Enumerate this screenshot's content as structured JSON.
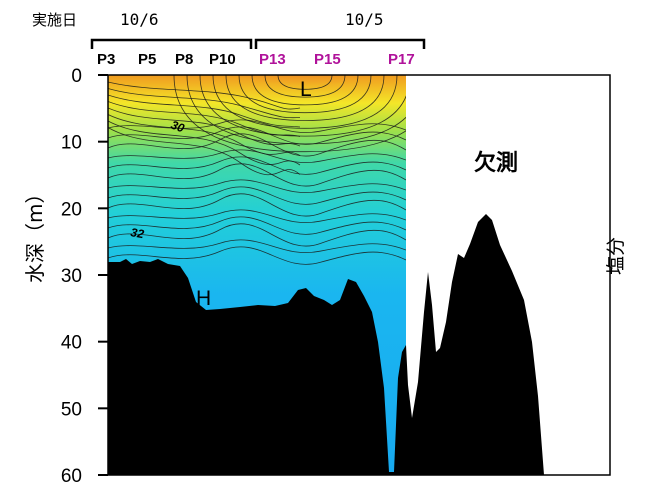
{
  "chart_data": {
    "type": "contour",
    "header_label": "実施日",
    "dates": [
      {
        "label": "10/6",
        "stations": [
          "P3",
          "P5",
          "P8",
          "P10"
        ]
      },
      {
        "label": "10/5",
        "stations": [
          "P13",
          "P15",
          "P17"
        ]
      }
    ],
    "station_colors": {
      "10/6": "#000000",
      "10/5": "#b0129a"
    },
    "ylabel": "水深（m）",
    "right_label": "塩分",
    "y_ticks": [
      0,
      10,
      20,
      30,
      40,
      50,
      60
    ],
    "ylim": [
      0,
      60
    ],
    "contour_labels": [
      {
        "text": "30",
        "depth": 8
      },
      {
        "text": "32",
        "depth": 23
      }
    ],
    "markers": [
      {
        "text": "L",
        "station": "P13-P15",
        "depth": 2
      },
      {
        "text": "H",
        "station": "P5-P8",
        "depth": 33
      }
    ],
    "missing_label": "欠測",
    "colors": {
      "low": "#e8481c",
      "mid": "#f4e628",
      "high": "#1ab6f0",
      "seabed": "#000000"
    }
  }
}
